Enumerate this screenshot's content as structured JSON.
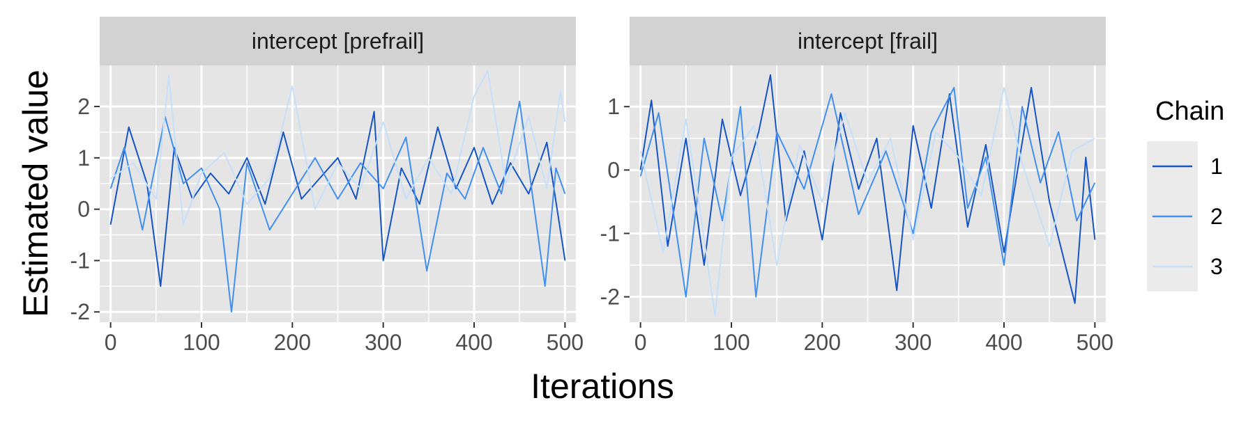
{
  "chart_data": {
    "type": "line",
    "xlabel": "Iterations",
    "ylabel": "Estimated value",
    "legend": {
      "title": "Chain",
      "position": "right",
      "entries": [
        "1",
        "2",
        "3"
      ]
    },
    "series_colors": {
      "1": "#1554c4",
      "2": "#4190f0",
      "3": "#c6e0fb"
    },
    "panel_background": "#e5e5e5",
    "strip_background": "#d2d2d2",
    "grid": true,
    "panels": [
      {
        "title": "intercept [prefrail]",
        "xlim": [
          -12,
          512
        ],
        "ylim": [
          -2.2,
          2.8
        ],
        "xticks": [
          0,
          100,
          200,
          300,
          400,
          500
        ],
        "yticks": [
          -2,
          -1,
          0,
          1,
          2
        ],
        "series": [
          {
            "name": "1",
            "x": [
              0,
              20,
              40,
              55,
              70,
              90,
              110,
              130,
              150,
              170,
              190,
              210,
              230,
              250,
              270,
              290,
              300,
              320,
              340,
              360,
              380,
              400,
              420,
              440,
              460,
              480,
              500
            ],
            "y": [
              -0.3,
              1.6,
              0.5,
              -1.5,
              1.2,
              0.2,
              0.7,
              0.3,
              1.0,
              0.1,
              1.5,
              0.2,
              0.6,
              1.0,
              0.2,
              1.9,
              -1.0,
              0.8,
              0.1,
              1.6,
              0.4,
              1.2,
              0.1,
              0.9,
              0.3,
              1.3,
              -1.0
            ]
          },
          {
            "name": "2",
            "x": [
              0,
              15,
              35,
              60,
              80,
              100,
              120,
              133,
              150,
              175,
              200,
              225,
              250,
              275,
              300,
              325,
              348,
              370,
              390,
              410,
              430,
              450,
              478,
              490,
              500
            ],
            "y": [
              0.4,
              1.2,
              -0.4,
              1.8,
              0.5,
              0.8,
              0.0,
              -2.0,
              0.9,
              -0.4,
              0.3,
              1.0,
              0.2,
              0.9,
              0.4,
              1.4,
              -1.2,
              0.7,
              0.2,
              1.2,
              0.3,
              2.1,
              -1.5,
              0.8,
              0.3
            ]
          },
          {
            "name": "3",
            "x": [
              0,
              25,
              50,
              64,
              80,
              100,
              125,
              150,
              175,
              200,
              225,
              250,
              275,
              300,
              325,
              350,
              375,
              400,
              415,
              435,
              460,
              480,
              495,
              500
            ],
            "y": [
              0.6,
              0.9,
              0.2,
              2.6,
              -0.3,
              0.7,
              1.1,
              0.1,
              0.6,
              2.4,
              0.0,
              0.9,
              0.4,
              1.7,
              0.2,
              1.0,
              0.3,
              2.2,
              2.7,
              0.5,
              1.8,
              0.4,
              2.3,
              1.7
            ]
          }
        ]
      },
      {
        "title": "intercept [frail]",
        "xlim": [
          -12,
          512
        ],
        "ylim": [
          -2.4,
          1.65
        ],
        "xticks": [
          0,
          100,
          200,
          300,
          400,
          500
        ],
        "yticks": [
          -2,
          -1,
          0,
          1
        ],
        "series": [
          {
            "name": "1",
            "x": [
              0,
              12,
              30,
              50,
              70,
              90,
              110,
              130,
              143,
              160,
              180,
              200,
              220,
              240,
              260,
              282,
              300,
              320,
              340,
              360,
              380,
              400,
              430,
              450,
              478,
              490,
              500
            ],
            "y": [
              0.0,
              1.1,
              -1.2,
              0.5,
              -1.5,
              0.8,
              -0.4,
              0.6,
              1.5,
              -0.8,
              0.3,
              -1.1,
              0.9,
              -0.3,
              0.5,
              -1.9,
              0.7,
              -0.6,
              1.2,
              -0.9,
              0.4,
              -1.3,
              1.3,
              -0.5,
              -2.1,
              0.2,
              -1.1
            ]
          },
          {
            "name": "2",
            "x": [
              0,
              20,
              50,
              70,
              90,
              110,
              127,
              150,
              180,
              210,
              240,
              270,
              300,
              320,
              345,
              360,
              380,
              400,
              420,
              440,
              460,
              480,
              500
            ],
            "y": [
              -0.1,
              0.9,
              -2.0,
              0.5,
              -0.8,
              1.0,
              -2.0,
              0.6,
              -0.3,
              1.2,
              -0.7,
              0.3,
              -1.0,
              0.6,
              1.3,
              -0.6,
              0.2,
              -1.5,
              1.0,
              -0.2,
              0.6,
              -0.8,
              -0.2
            ]
          },
          {
            "name": "3",
            "x": [
              0,
              25,
              50,
              65,
              82,
              100,
              125,
              150,
              175,
              200,
              225,
              250,
              275,
              300,
              325,
              350,
              375,
              400,
              420,
              450,
              475,
              500
            ],
            "y": [
              0.3,
              -1.3,
              0.8,
              -0.6,
              -2.3,
              0.2,
              0.7,
              -1.5,
              0.4,
              -0.5,
              0.9,
              -0.2,
              0.5,
              -1.1,
              0.6,
              0.2,
              -0.4,
              1.3,
              0.1,
              -1.2,
              0.3,
              0.5
            ]
          }
        ]
      }
    ]
  }
}
